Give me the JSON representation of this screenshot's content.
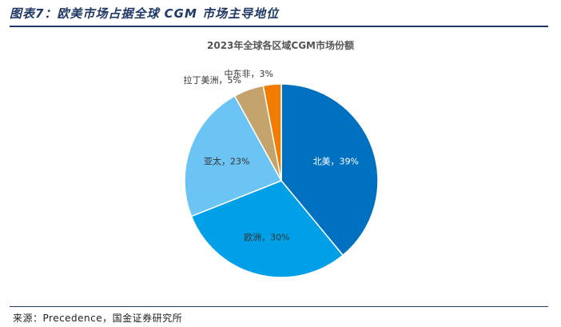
{
  "figure": {
    "title": "图表7：欧美市场占据全球 CGM 市场主导地位",
    "source": "来源：Precedence，国金证券研究所"
  },
  "chart_data": {
    "type": "pie",
    "title": "2023年全球各区域CGM市场份额",
    "start_angle_deg": 90,
    "direction": "clockwise",
    "slices": [
      {
        "name": "北美",
        "value": 39,
        "label": "北美，39%",
        "color": "#0070c0",
        "label_color": "#ffffff",
        "label_inside": true
      },
      {
        "name": "欧洲",
        "value": 30,
        "label": "欧洲，30%",
        "color": "#00a0e9",
        "label_color": "#333333",
        "label_inside": true
      },
      {
        "name": "亚太",
        "value": 23,
        "label": "亚太，23%",
        "color": "#6cc4f4",
        "label_color": "#333333",
        "label_inside": true
      },
      {
        "name": "拉丁美洲",
        "value": 5,
        "label": "拉丁美洲，5%",
        "color": "#c4a46c",
        "label_color": "#333333",
        "label_inside": false
      },
      {
        "name": "中东非",
        "value": 3,
        "label": "中东非，3%",
        "color": "#f07c00",
        "label_color": "#333333",
        "label_inside": false
      }
    ]
  }
}
